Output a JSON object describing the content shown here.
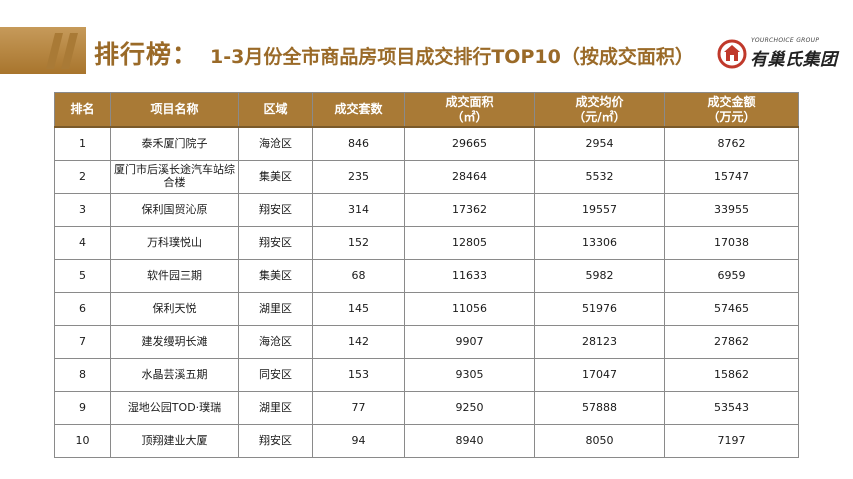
{
  "header": {
    "title_head": "排行榜：",
    "title_sub": "1-3月份全市商品房项目成交排行TOP10（按成交面积）"
  },
  "brand": {
    "tagline": "YOURCHOICE GROUP",
    "name": "有巢氏集团",
    "accent_color": "#a97a36",
    "logo_color": "#c0392b"
  },
  "table": {
    "headers": [
      {
        "line1": "排名",
        "line2": ""
      },
      {
        "line1": "项目名称",
        "line2": ""
      },
      {
        "line1": "区域",
        "line2": ""
      },
      {
        "line1": "成交套数",
        "line2": ""
      },
      {
        "line1": "成交面积",
        "line2": "（㎡）"
      },
      {
        "line1": "成交均价",
        "line2": "（元/㎡）"
      },
      {
        "line1": "成交金额",
        "line2": "（万元）"
      }
    ],
    "rows": [
      {
        "rank": "1",
        "name": "泰禾厦门院子",
        "district": "海沧区",
        "units": "846",
        "area": "29665",
        "price": "2954",
        "amount": "8762"
      },
      {
        "rank": "2",
        "name": "厦门市后溪长途汽车站综合楼",
        "district": "集美区",
        "units": "235",
        "area": "28464",
        "price": "5532",
        "amount": "15747"
      },
      {
        "rank": "3",
        "name": "保利国贸沁原",
        "district": "翔安区",
        "units": "314",
        "area": "17362",
        "price": "19557",
        "amount": "33955"
      },
      {
        "rank": "4",
        "name": "万科璞悦山",
        "district": "翔安区",
        "units": "152",
        "area": "12805",
        "price": "13306",
        "amount": "17038"
      },
      {
        "rank": "5",
        "name": "软件园三期",
        "district": "集美区",
        "units": "68",
        "area": "11633",
        "price": "5982",
        "amount": "6959"
      },
      {
        "rank": "6",
        "name": "保利天悦",
        "district": "湖里区",
        "units": "145",
        "area": "11056",
        "price": "51976",
        "amount": "57465"
      },
      {
        "rank": "7",
        "name": "建发缦玥长滩",
        "district": "海沧区",
        "units": "142",
        "area": "9907",
        "price": "28123",
        "amount": "27862"
      },
      {
        "rank": "8",
        "name": "水晶芸溪五期",
        "district": "同安区",
        "units": "153",
        "area": "9305",
        "price": "17047",
        "amount": "15862"
      },
      {
        "rank": "9",
        "name": "湿地公园TOD·璞瑞",
        "district": "湖里区",
        "units": "77",
        "area": "9250",
        "price": "57888",
        "amount": "53543"
      },
      {
        "rank": "10",
        "name": "顶翔建业大厦",
        "district": "翔安区",
        "units": "94",
        "area": "8940",
        "price": "8050",
        "amount": "7197"
      }
    ]
  }
}
